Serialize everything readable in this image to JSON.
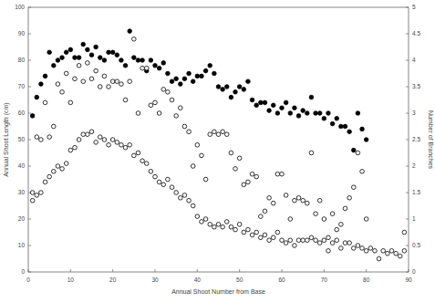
{
  "chart_data": {
    "type": "scatter",
    "x_label": "Annual Shoot Number from Base",
    "y_label": "Annual Shoot Length (cm)",
    "y2_label": "Number of Branches",
    "xlim": [
      0,
      90
    ],
    "xticks": [
      0,
      10,
      20,
      30,
      40,
      50,
      60,
      70,
      80,
      90
    ],
    "ylim": [
      0,
      100
    ],
    "yticks": [
      0,
      10,
      20,
      30,
      40,
      50,
      60,
      70,
      80,
      90,
      100
    ],
    "y2lim": [
      0,
      5
    ],
    "y2ticks": [
      0,
      0.5,
      1,
      1.5,
      2,
      2.5,
      3,
      3.5,
      4,
      4.5,
      5
    ],
    "grid": false,
    "series": [
      {
        "color": "#000000",
        "marker": "filled-circle",
        "x": [
          1,
          2,
          3,
          4,
          5,
          6,
          7,
          8,
          9,
          10,
          11,
          12,
          13,
          14,
          15,
          16,
          17,
          18,
          19,
          20,
          21,
          22,
          23,
          24,
          25,
          26,
          27,
          28,
          29,
          30,
          31,
          32,
          33,
          34,
          35,
          36,
          37,
          38,
          39,
          40,
          41,
          42,
          43,
          44,
          45,
          46,
          47,
          48,
          49,
          50,
          51,
          52,
          53,
          54,
          55,
          56,
          57,
          58,
          59,
          60,
          61,
          62,
          63,
          64,
          65,
          66,
          67,
          68,
          69,
          70,
          71,
          72,
          73,
          74,
          75,
          76,
          77,
          78,
          79,
          80
        ],
        "values": [
          59,
          66,
          71,
          74,
          83,
          78,
          80,
          81,
          83,
          84,
          81,
          81,
          86,
          84,
          82,
          85,
          81,
          80,
          83,
          83,
          82,
          80,
          78,
          91,
          81,
          80,
          80,
          76,
          80,
          78,
          77,
          79,
          75,
          72,
          73,
          71,
          73,
          75,
          72,
          74,
          74,
          76,
          78,
          75,
          70,
          69,
          70,
          66,
          68,
          70,
          69,
          72,
          65,
          63,
          64,
          64,
          61,
          63,
          60,
          62,
          64,
          60,
          62,
          59,
          61,
          60,
          66,
          60,
          60,
          58,
          60,
          56,
          58,
          55,
          55,
          53,
          46,
          60,
          54,
          50
        ]
      },
      {
        "color": "#000000",
        "marker": "open-circle",
        "axis": "y2",
        "x": [
          1,
          2,
          3,
          4,
          5,
          6,
          7,
          8,
          9,
          10,
          11,
          12,
          13,
          14,
          15,
          16,
          17,
          18,
          19,
          20,
          21,
          22,
          23,
          24,
          25,
          26,
          27,
          28,
          29,
          30,
          31,
          32,
          33,
          34,
          35,
          36,
          37,
          38,
          39,
          40,
          41,
          42,
          43,
          44,
          45,
          46,
          47,
          48,
          49,
          50,
          51,
          52,
          53,
          54,
          55,
          56,
          57,
          58,
          59,
          60,
          61,
          62,
          63,
          64,
          65,
          66,
          67,
          68,
          69,
          70,
          71,
          72,
          73,
          74,
          75,
          76,
          77,
          78,
          79,
          80,
          89
        ],
        "values": [
          1.5,
          2.55,
          2.5,
          3.2,
          2.55,
          2.75,
          3.55,
          3.4,
          3.75,
          3.2,
          3.65,
          3.9,
          3.6,
          3.95,
          3.65,
          3.8,
          3.5,
          3.7,
          3.5,
          3.6,
          3.6,
          3.55,
          3.25,
          3.6,
          4.4,
          3.0,
          3.85,
          3.85,
          3.15,
          3.2,
          3.0,
          3.45,
          3.4,
          3.25,
          2.95,
          3.1,
          2.75,
          2.65,
          2.0,
          2.4,
          2.2,
          1.75,
          2.6,
          2.65,
          2.6,
          2.65,
          2.6,
          2.25,
          1.95,
          2.15,
          1.65,
          1.7,
          1.85,
          1.8,
          1.05,
          1.15,
          1.4,
          1.3,
          1.85,
          1.85,
          1.45,
          1.0,
          1.35,
          1.4,
          1.35,
          1.3,
          2.25,
          1.1,
          1.35,
          1.0,
          0.65,
          1.1,
          0.8,
          0.9,
          1.2,
          1.4,
          1.6,
          2.25,
          1.9,
          1.0,
          0.75
        ]
      },
      {
        "color": "#000000",
        "marker": "open-circle",
        "x": [
          1,
          2,
          3,
          4,
          5,
          6,
          7,
          8,
          9,
          10,
          11,
          12,
          13,
          14,
          15,
          16,
          17,
          18,
          19,
          20,
          21,
          22,
          23,
          24,
          25,
          26,
          27,
          28,
          29,
          30,
          31,
          32,
          33,
          34,
          35,
          36,
          37,
          38,
          39,
          40,
          41,
          42,
          43,
          44,
          45,
          46,
          47,
          48,
          49,
          50,
          51,
          52,
          53,
          54,
          55,
          56,
          57,
          58,
          59,
          60,
          61,
          62,
          63,
          64,
          65,
          66,
          67,
          68,
          69,
          70,
          71,
          72,
          73,
          74,
          75,
          76,
          77,
          78,
          79,
          80,
          81,
          82,
          83,
          84,
          85,
          86,
          87,
          88,
          89
        ],
        "values": [
          27,
          29,
          30,
          34,
          36,
          38,
          40,
          39,
          41,
          46,
          47,
          50,
          52,
          52,
          53,
          49,
          51,
          50,
          48,
          50,
          49,
          48,
          47,
          48,
          44,
          45,
          42,
          41,
          38,
          36,
          34,
          33,
          35,
          32,
          30,
          28,
          29,
          27,
          25,
          21,
          19,
          20,
          18,
          17,
          18,
          17,
          19,
          17,
          16,
          18,
          15,
          16,
          14,
          15,
          13,
          14,
          12,
          13,
          15,
          12,
          11,
          12,
          10,
          12,
          12,
          12,
          13,
          12,
          11,
          12,
          8,
          11,
          12,
          9,
          11,
          11,
          9,
          10,
          9,
          8,
          9,
          8,
          5,
          8,
          7,
          8,
          7,
          6,
          8
        ]
      }
    ]
  }
}
